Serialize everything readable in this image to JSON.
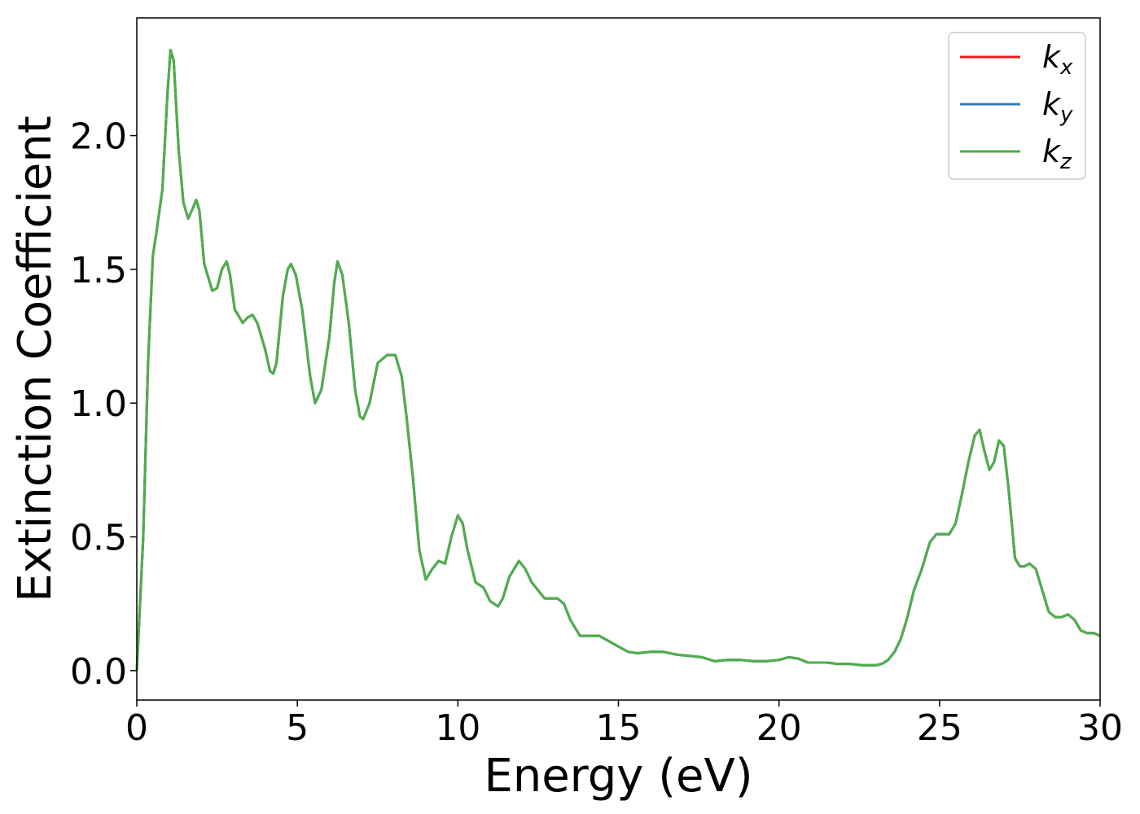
{
  "chart_data": {
    "type": "line",
    "title": "",
    "xlabel": "Energy (eV)",
    "ylabel": "Extinction Coefficient",
    "xlim": [
      0,
      30
    ],
    "ylim": [
      -0.11,
      2.44
    ],
    "xticks": [
      "0",
      "5",
      "10",
      "15",
      "20",
      "25",
      "30"
    ],
    "xtick_values": [
      0,
      5,
      10,
      15,
      20,
      25,
      30
    ],
    "yticks": [
      "0.0",
      "0.5",
      "1.0",
      "1.5",
      "2.0"
    ],
    "ytick_values": [
      0.0,
      0.5,
      1.0,
      1.5,
      2.0
    ],
    "grid": false,
    "legend_position": "top-right",
    "series": [
      {
        "name": "k_x",
        "label_base": "k",
        "label_sub": "x",
        "color": "#e41a1c",
        "x": [
          0,
          0.2,
          0.35,
          0.5,
          0.6,
          0.8,
          0.95,
          1.05,
          1.15,
          1.3,
          1.45,
          1.6,
          1.75,
          1.85,
          1.95,
          2.1,
          2.35,
          2.5,
          2.65,
          2.8,
          2.9,
          3.05,
          3.3,
          3.45,
          3.6,
          3.75,
          4.0,
          4.15,
          4.25,
          4.35,
          4.55,
          4.7,
          4.8,
          4.95,
          5.15,
          5.4,
          5.55,
          5.75,
          6.0,
          6.15,
          6.25,
          6.4,
          6.6,
          6.8,
          6.95,
          7.05,
          7.25,
          7.5,
          7.8,
          8.05,
          8.25,
          8.4,
          8.6,
          8.8,
          9.0,
          9.2,
          9.4,
          9.6,
          9.8,
          10.0,
          10.15,
          10.3,
          10.55,
          10.8,
          11.0,
          11.25,
          11.4,
          11.6,
          11.9,
          12.1,
          12.3,
          12.5,
          12.7,
          12.9,
          13.1,
          13.3,
          13.5,
          13.8,
          14.1,
          14.4,
          14.7,
          15.0,
          15.3,
          15.6,
          16.0,
          16.4,
          16.8,
          17.2,
          17.6,
          18.0,
          18.4,
          18.8,
          19.2,
          19.6,
          20.0,
          20.3,
          20.6,
          20.9,
          21.2,
          21.5,
          21.8,
          22.2,
          22.6,
          23.0,
          23.2,
          23.4,
          23.6,
          23.8,
          24.0,
          24.2,
          24.45,
          24.7,
          24.9,
          25.1,
          25.3,
          25.5,
          25.7,
          25.9,
          26.1,
          26.25,
          26.4,
          26.55,
          26.7,
          26.85,
          27.0,
          27.15,
          27.35,
          27.5,
          27.65,
          27.8,
          28.0,
          28.2,
          28.4,
          28.6,
          28.8,
          29.0,
          29.2,
          29.4,
          29.6,
          29.8,
          30.0
        ],
        "values": [
          0.0,
          0.5,
          1.15,
          1.55,
          1.63,
          1.8,
          2.15,
          2.32,
          2.28,
          1.95,
          1.75,
          1.69,
          1.73,
          1.76,
          1.72,
          1.52,
          1.42,
          1.43,
          1.5,
          1.53,
          1.48,
          1.35,
          1.3,
          1.32,
          1.33,
          1.3,
          1.2,
          1.12,
          1.11,
          1.15,
          1.4,
          1.5,
          1.52,
          1.48,
          1.35,
          1.1,
          1.0,
          1.05,
          1.25,
          1.45,
          1.53,
          1.48,
          1.3,
          1.05,
          0.95,
          0.94,
          1.0,
          1.15,
          1.18,
          1.18,
          1.1,
          0.95,
          0.72,
          0.45,
          0.34,
          0.38,
          0.41,
          0.4,
          0.5,
          0.58,
          0.55,
          0.45,
          0.33,
          0.31,
          0.26,
          0.24,
          0.27,
          0.35,
          0.41,
          0.38,
          0.33,
          0.3,
          0.27,
          0.27,
          0.27,
          0.25,
          0.19,
          0.13,
          0.13,
          0.13,
          0.11,
          0.09,
          0.07,
          0.065,
          0.07,
          0.07,
          0.06,
          0.055,
          0.05,
          0.035,
          0.04,
          0.04,
          0.035,
          0.035,
          0.04,
          0.05,
          0.045,
          0.03,
          0.03,
          0.03,
          0.025,
          0.025,
          0.02,
          0.02,
          0.025,
          0.04,
          0.07,
          0.12,
          0.2,
          0.3,
          0.38,
          0.48,
          0.51,
          0.51,
          0.51,
          0.55,
          0.66,
          0.78,
          0.88,
          0.9,
          0.82,
          0.75,
          0.78,
          0.86,
          0.84,
          0.68,
          0.42,
          0.39,
          0.39,
          0.4,
          0.38,
          0.3,
          0.22,
          0.2,
          0.2,
          0.21,
          0.19,
          0.15,
          0.14,
          0.14,
          0.13
        ]
      },
      {
        "name": "k_y",
        "label_base": "k",
        "label_sub": "y",
        "color": "#377eb8",
        "x": [
          0,
          0.2,
          0.35,
          0.5,
          0.6,
          0.8,
          0.95,
          1.05,
          1.15,
          1.3,
          1.45,
          1.6,
          1.75,
          1.85,
          1.95,
          2.1,
          2.35,
          2.5,
          2.65,
          2.8,
          2.9,
          3.05,
          3.3,
          3.45,
          3.6,
          3.75,
          4.0,
          4.15,
          4.25,
          4.35,
          4.55,
          4.7,
          4.8,
          4.95,
          5.15,
          5.4,
          5.55,
          5.75,
          6.0,
          6.15,
          6.25,
          6.4,
          6.6,
          6.8,
          6.95,
          7.05,
          7.25,
          7.5,
          7.8,
          8.05,
          8.25,
          8.4,
          8.6,
          8.8,
          9.0,
          9.2,
          9.4,
          9.6,
          9.8,
          10.0,
          10.15,
          10.3,
          10.55,
          10.8,
          11.0,
          11.25,
          11.4,
          11.6,
          11.9,
          12.1,
          12.3,
          12.5,
          12.7,
          12.9,
          13.1,
          13.3,
          13.5,
          13.8,
          14.1,
          14.4,
          14.7,
          15.0,
          15.3,
          15.6,
          16.0,
          16.4,
          16.8,
          17.2,
          17.6,
          18.0,
          18.4,
          18.8,
          19.2,
          19.6,
          20.0,
          20.3,
          20.6,
          20.9,
          21.2,
          21.5,
          21.8,
          22.2,
          22.6,
          23.0,
          23.2,
          23.4,
          23.6,
          23.8,
          24.0,
          24.2,
          24.45,
          24.7,
          24.9,
          25.1,
          25.3,
          25.5,
          25.7,
          25.9,
          26.1,
          26.25,
          26.4,
          26.55,
          26.7,
          26.85,
          27.0,
          27.15,
          27.35,
          27.5,
          27.65,
          27.8,
          28.0,
          28.2,
          28.4,
          28.6,
          28.8,
          29.0,
          29.2,
          29.4,
          29.6,
          29.8,
          30.0
        ],
        "values": [
          0.0,
          0.5,
          1.15,
          1.55,
          1.63,
          1.8,
          2.15,
          2.32,
          2.28,
          1.95,
          1.75,
          1.69,
          1.73,
          1.76,
          1.72,
          1.52,
          1.42,
          1.43,
          1.5,
          1.53,
          1.48,
          1.35,
          1.3,
          1.32,
          1.33,
          1.3,
          1.2,
          1.12,
          1.11,
          1.15,
          1.4,
          1.5,
          1.52,
          1.48,
          1.35,
          1.1,
          1.0,
          1.05,
          1.25,
          1.45,
          1.53,
          1.48,
          1.3,
          1.05,
          0.95,
          0.94,
          1.0,
          1.15,
          1.18,
          1.18,
          1.1,
          0.95,
          0.72,
          0.45,
          0.34,
          0.38,
          0.41,
          0.4,
          0.5,
          0.58,
          0.55,
          0.45,
          0.33,
          0.31,
          0.26,
          0.24,
          0.27,
          0.35,
          0.41,
          0.38,
          0.33,
          0.3,
          0.27,
          0.27,
          0.27,
          0.25,
          0.19,
          0.13,
          0.13,
          0.13,
          0.11,
          0.09,
          0.07,
          0.065,
          0.07,
          0.07,
          0.06,
          0.055,
          0.05,
          0.035,
          0.04,
          0.04,
          0.035,
          0.035,
          0.04,
          0.05,
          0.045,
          0.03,
          0.03,
          0.03,
          0.025,
          0.025,
          0.02,
          0.02,
          0.025,
          0.04,
          0.07,
          0.12,
          0.2,
          0.3,
          0.38,
          0.48,
          0.51,
          0.51,
          0.51,
          0.55,
          0.66,
          0.78,
          0.88,
          0.9,
          0.82,
          0.75,
          0.78,
          0.86,
          0.84,
          0.68,
          0.42,
          0.39,
          0.39,
          0.4,
          0.38,
          0.3,
          0.22,
          0.2,
          0.2,
          0.21,
          0.19,
          0.15,
          0.14,
          0.14,
          0.13
        ]
      },
      {
        "name": "k_z",
        "label_base": "k",
        "label_sub": "z",
        "color": "#4daf4a",
        "x": [
          0,
          0.2,
          0.35,
          0.5,
          0.6,
          0.8,
          0.95,
          1.05,
          1.15,
          1.3,
          1.45,
          1.6,
          1.75,
          1.85,
          1.95,
          2.1,
          2.35,
          2.5,
          2.65,
          2.8,
          2.9,
          3.05,
          3.3,
          3.45,
          3.6,
          3.75,
          4.0,
          4.15,
          4.25,
          4.35,
          4.55,
          4.7,
          4.8,
          4.95,
          5.15,
          5.4,
          5.55,
          5.75,
          6.0,
          6.15,
          6.25,
          6.4,
          6.6,
          6.8,
          6.95,
          7.05,
          7.25,
          7.5,
          7.8,
          8.05,
          8.25,
          8.4,
          8.6,
          8.8,
          9.0,
          9.2,
          9.4,
          9.6,
          9.8,
          10.0,
          10.15,
          10.3,
          10.55,
          10.8,
          11.0,
          11.25,
          11.4,
          11.6,
          11.9,
          12.1,
          12.3,
          12.5,
          12.7,
          12.9,
          13.1,
          13.3,
          13.5,
          13.8,
          14.1,
          14.4,
          14.7,
          15.0,
          15.3,
          15.6,
          16.0,
          16.4,
          16.8,
          17.2,
          17.6,
          18.0,
          18.4,
          18.8,
          19.2,
          19.6,
          20.0,
          20.3,
          20.6,
          20.9,
          21.2,
          21.5,
          21.8,
          22.2,
          22.6,
          23.0,
          23.2,
          23.4,
          23.6,
          23.8,
          24.0,
          24.2,
          24.45,
          24.7,
          24.9,
          25.1,
          25.3,
          25.5,
          25.7,
          25.9,
          26.1,
          26.25,
          26.4,
          26.55,
          26.7,
          26.85,
          27.0,
          27.15,
          27.35,
          27.5,
          27.65,
          27.8,
          28.0,
          28.2,
          28.4,
          28.6,
          28.8,
          29.0,
          29.2,
          29.4,
          29.6,
          29.8,
          30.0
        ],
        "values": [
          0.0,
          0.5,
          1.15,
          1.55,
          1.63,
          1.8,
          2.15,
          2.32,
          2.28,
          1.95,
          1.75,
          1.69,
          1.73,
          1.76,
          1.72,
          1.52,
          1.42,
          1.43,
          1.5,
          1.53,
          1.48,
          1.35,
          1.3,
          1.32,
          1.33,
          1.3,
          1.2,
          1.12,
          1.11,
          1.15,
          1.4,
          1.5,
          1.52,
          1.48,
          1.35,
          1.1,
          1.0,
          1.05,
          1.25,
          1.45,
          1.53,
          1.48,
          1.3,
          1.05,
          0.95,
          0.94,
          1.0,
          1.15,
          1.18,
          1.18,
          1.1,
          0.95,
          0.72,
          0.45,
          0.34,
          0.38,
          0.41,
          0.4,
          0.5,
          0.58,
          0.55,
          0.45,
          0.33,
          0.31,
          0.26,
          0.24,
          0.27,
          0.35,
          0.41,
          0.38,
          0.33,
          0.3,
          0.27,
          0.27,
          0.27,
          0.25,
          0.19,
          0.13,
          0.13,
          0.13,
          0.11,
          0.09,
          0.07,
          0.065,
          0.07,
          0.07,
          0.06,
          0.055,
          0.05,
          0.035,
          0.04,
          0.04,
          0.035,
          0.035,
          0.04,
          0.05,
          0.045,
          0.03,
          0.03,
          0.03,
          0.025,
          0.025,
          0.02,
          0.02,
          0.025,
          0.04,
          0.07,
          0.12,
          0.2,
          0.3,
          0.38,
          0.48,
          0.51,
          0.51,
          0.51,
          0.55,
          0.66,
          0.78,
          0.88,
          0.9,
          0.82,
          0.75,
          0.78,
          0.86,
          0.84,
          0.68,
          0.42,
          0.39,
          0.39,
          0.4,
          0.38,
          0.3,
          0.22,
          0.2,
          0.2,
          0.21,
          0.19,
          0.15,
          0.14,
          0.14,
          0.13
        ]
      }
    ]
  }
}
